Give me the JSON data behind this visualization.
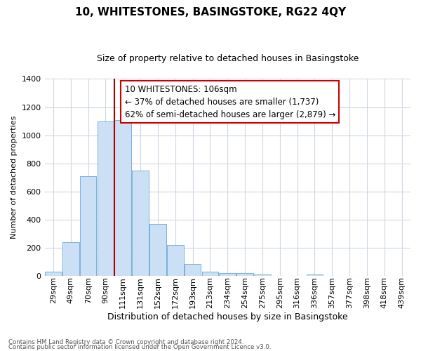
{
  "title": "10, WHITESTONES, BASINGSTOKE, RG22 4QY",
  "subtitle": "Size of property relative to detached houses in Basingstoke",
  "xlabel": "Distribution of detached houses by size in Basingstoke",
  "ylabel": "Number of detached properties",
  "footnote1": "Contains HM Land Registry data © Crown copyright and database right 2024.",
  "footnote2": "Contains public sector information licensed under the Open Government Licence v3.0.",
  "bar_labels": [
    "29sqm",
    "49sqm",
    "70sqm",
    "90sqm",
    "111sqm",
    "131sqm",
    "152sqm",
    "172sqm",
    "193sqm",
    "213sqm",
    "234sqm",
    "254sqm",
    "275sqm",
    "295sqm",
    "316sqm",
    "336sqm",
    "357sqm",
    "377sqm",
    "398sqm",
    "418sqm",
    "439sqm"
  ],
  "bar_values": [
    28,
    240,
    710,
    1100,
    1110,
    750,
    370,
    220,
    85,
    28,
    18,
    18,
    10,
    0,
    0,
    10,
    0,
    0,
    0,
    0,
    0
  ],
  "bar_color": "#cce0f5",
  "bar_edge_color": "#7ab0d8",
  "vline_color": "#aa0000",
  "annotation_title": "10 WHITESTONES: 106sqm",
  "annotation_line1": "← 37% of detached houses are smaller (1,737)",
  "annotation_line2": "62% of semi-detached houses are larger (2,879) →",
  "annotation_box_color": "#ffffff",
  "annotation_box_edge": "#cc0000",
  "ylim": [
    0,
    1400
  ],
  "yticks": [
    0,
    200,
    400,
    600,
    800,
    1000,
    1200,
    1400
  ],
  "grid_color": "#d0d8e4",
  "bg_color": "#ffffff",
  "title_fontsize": 11,
  "subtitle_fontsize": 9,
  "ylabel_fontsize": 8,
  "xlabel_fontsize": 9,
  "tick_fontsize": 8,
  "ann_fontsize": 8.5,
  "footnote_fontsize": 6.2
}
